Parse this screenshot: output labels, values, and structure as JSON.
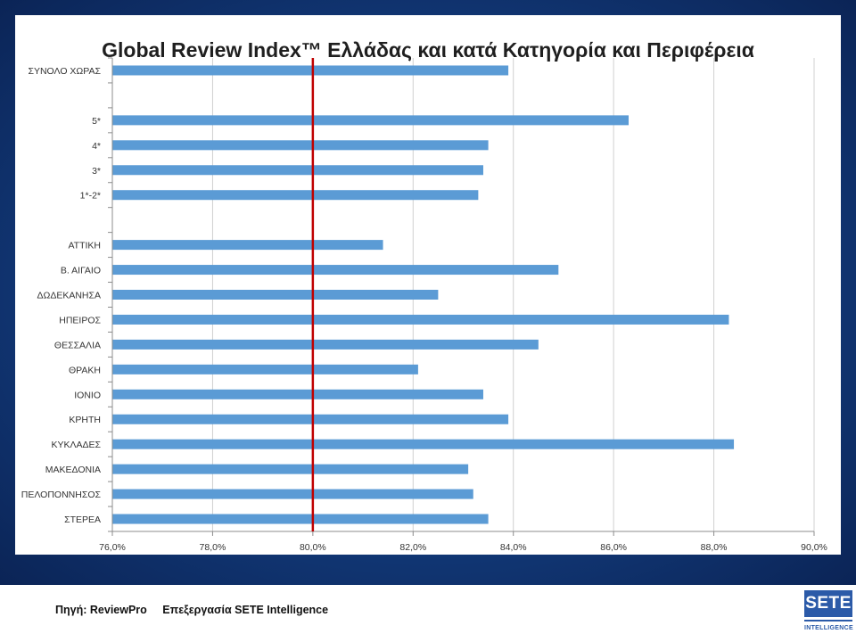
{
  "footer": {
    "source_label": "Πηγή: ReviewPro",
    "processing_label": "Επεξεργασία SETE Intelligence"
  },
  "logo": {
    "main_text": "SETE",
    "sub_text": "INTELLIGENCE"
  },
  "chart_data": {
    "type": "bar",
    "orientation": "horizontal",
    "title": "Global Review Index™ Ελλάδας και κατά Κατηγορία και Περιφέρεια",
    "categories": [
      "ΣΥΝΟΛΟ ΧΩΡΑΣ",
      "",
      "5*",
      "4*",
      "3*",
      "1*-2*",
      "",
      "ΑΤΤΙΚΗ",
      "Β. ΑΙΓΑΙΟ",
      "ΔΩΔΕΚΑΝΗΣΑ",
      "ΗΠΕΙΡΟΣ",
      "ΘΕΣΣΑΛΙΑ",
      "ΘΡΑΚΗ",
      "ΙΟΝΙΟ",
      "ΚΡΗΤΗ",
      "ΚΥΚΛΑΔΕΣ",
      "ΜΑΚΕΔΟΝΙΑ",
      "ΠΕΛΟΠΟΝΝΗΣΟΣ",
      "ΣΤΕΡΕΑ"
    ],
    "values": [
      83.9,
      null,
      86.3,
      83.5,
      83.4,
      83.3,
      null,
      81.4,
      84.9,
      82.5,
      88.3,
      84.5,
      82.1,
      83.4,
      83.9,
      88.4,
      83.1,
      83.2,
      83.5
    ],
    "xlim": [
      76,
      90
    ],
    "xticks": [
      "76,0%",
      "78,0%",
      "80,0%",
      "82,0%",
      "84,0%",
      "86,0%",
      "88,0%",
      "90,0%"
    ],
    "reference_line": 80,
    "grid": true,
    "legend": "none",
    "colors": {
      "bar": "#5b9bd5",
      "reference_line": "#c00000",
      "grid": "#d0d0d0",
      "background_band": "#123a7a"
    }
  }
}
